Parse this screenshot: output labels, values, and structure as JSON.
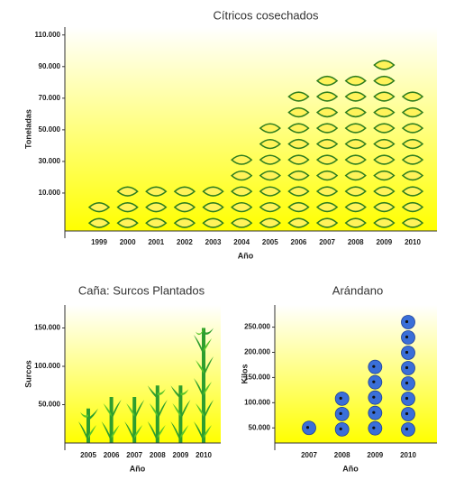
{
  "chart_data": [
    {
      "type": "pictograph",
      "icon": "lemon",
      "title": "Cítricos cosechados",
      "x_label": "Año",
      "y_label": "Toneladas",
      "categories": [
        "1999",
        "2000",
        "2001",
        "2002",
        "2003",
        "2004",
        "2005",
        "2006",
        "2007",
        "2008",
        "2009",
        "2010"
      ],
      "values": [
        6000,
        16000,
        16000,
        16000,
        16000,
        36000,
        56000,
        76000,
        86000,
        86000,
        96000,
        76000
      ],
      "color": "#fff35a",
      "ylim": [
        -14000,
        115000
      ],
      "yticks": [
        {
          "value": 10000,
          "label": "10.000"
        },
        {
          "value": 30000,
          "label": "30.000"
        },
        {
          "value": 50000,
          "label": "50.000"
        },
        {
          "value": 70000,
          "label": "70.000"
        },
        {
          "value": 90000,
          "label": "90.000"
        },
        {
          "value": 110000,
          "label": "110.000"
        }
      ]
    },
    {
      "type": "pictograph",
      "icon": "cane",
      "title": "Caña: Surcos Plantados",
      "x_label": "Año",
      "y_label": "Surcos",
      "categories": [
        "2005",
        "2006",
        "2007",
        "2008",
        "2009",
        "2010"
      ],
      "values": [
        45000,
        60000,
        60000,
        75000,
        75000,
        150000
      ],
      "color": "#2e9e2e",
      "ylim": [
        0,
        180000
      ],
      "yticks": [
        {
          "value": 50000,
          "label": "50.000"
        },
        {
          "value": 100000,
          "label": "100.000"
        },
        {
          "value": 150000,
          "label": "150.000"
        }
      ]
    },
    {
      "type": "pictograph",
      "icon": "berry",
      "title": "Arándano",
      "x_label": "Año",
      "y_label": "Kilos",
      "categories": [
        "2007",
        "2008",
        "2009",
        "2010"
      ],
      "values": [
        50000,
        108000,
        171000,
        260000
      ],
      "color": "#3a6fd8",
      "ylim": [
        20000,
        294000
      ],
      "yticks": [
        {
          "value": 50000,
          "label": "50.000"
        },
        {
          "value": 100000,
          "label": "100.000"
        },
        {
          "value": 150000,
          "label": "150.000"
        },
        {
          "value": 200000,
          "label": "200.000"
        },
        {
          "value": 250000,
          "label": "250.000"
        }
      ]
    }
  ]
}
